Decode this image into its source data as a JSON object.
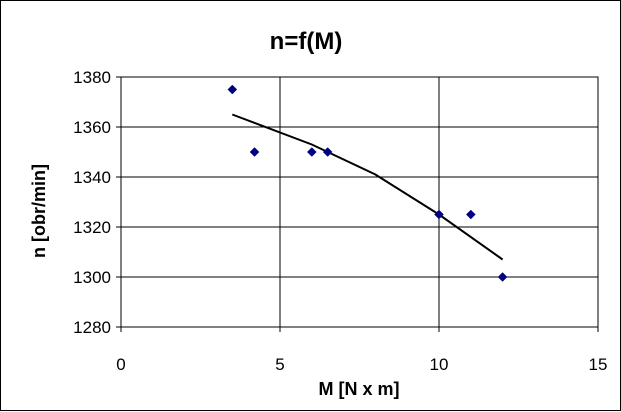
{
  "chart_data": {
    "type": "scatter",
    "title": "n=f(M)",
    "xlabel": "M [N x m]",
    "ylabel": "n [obr/min]",
    "xlim": [
      0,
      15
    ],
    "ylim": [
      1280,
      1380
    ],
    "x_ticks": [
      "0",
      "5",
      "10",
      "15"
    ],
    "y_ticks": [
      "1280",
      "1300",
      "1320",
      "1340",
      "1360",
      "1380"
    ],
    "grid": "major gridlines on both axes",
    "legend": "none",
    "marker_color": "#000080",
    "trendline_color": "#000000",
    "series": [
      {
        "points": [
          {
            "x": 3.5,
            "y": 1375
          },
          {
            "x": 4.2,
            "y": 1350
          },
          {
            "x": 6.0,
            "y": 1350
          },
          {
            "x": 6.5,
            "y": 1350
          },
          {
            "x": 10.0,
            "y": 1325
          },
          {
            "x": 11.0,
            "y": 1325
          },
          {
            "x": 12.0,
            "y": 1300
          }
        ]
      }
    ],
    "trendline": {
      "type": "polynomial",
      "points": [
        {
          "x": 3.5,
          "y": 1365
        },
        {
          "x": 6.0,
          "y": 1353
        },
        {
          "x": 8.0,
          "y": 1341
        },
        {
          "x": 10.0,
          "y": 1325
        },
        {
          "x": 12.0,
          "y": 1307
        }
      ]
    }
  }
}
